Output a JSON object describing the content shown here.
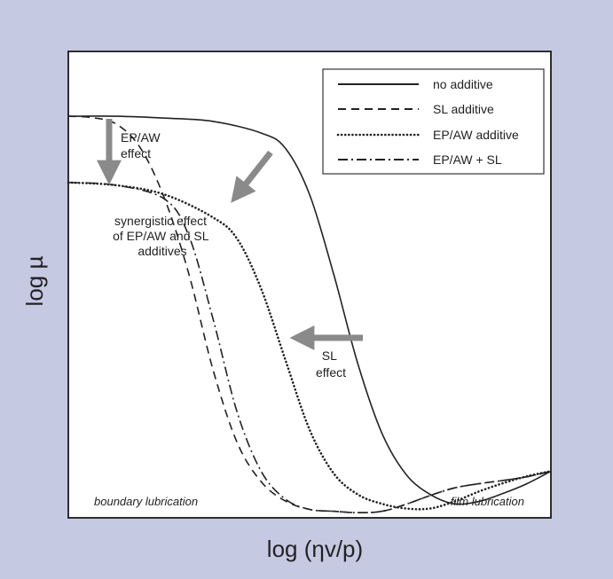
{
  "colors": {
    "background": "#c5c9e2",
    "plot_background": "#ffffff",
    "curve": "#222222",
    "arrow": "#8a8a8a"
  },
  "chart_data": {
    "type": "line",
    "title": "",
    "xlabel": "log (ηv/p)",
    "ylabel": "log µ",
    "xscale": "log",
    "yscale": "log",
    "x_tick_labels": [],
    "y_tick_labels": [],
    "xlim": [
      0,
      100
    ],
    "ylim": [
      0,
      100
    ],
    "grid": false,
    "legend": {
      "position": "top-right"
    },
    "series": [
      {
        "name": "no additive",
        "dash": "solid",
        "x": [
          0,
          10,
          20,
          30,
          40,
          45,
          50,
          55,
          60,
          65,
          70,
          75,
          80,
          85,
          90,
          95,
          100
        ],
        "y": [
          86.1,
          86.1,
          85.7,
          85.0,
          82.5,
          79.2,
          69.3,
          52.2,
          33.0,
          18.1,
          9.3,
          5.0,
          3.0,
          3.5,
          5.2,
          7.3,
          10.0
        ]
      },
      {
        "name": "SL additive",
        "dash": "dashed",
        "x": [
          0,
          5,
          10,
          15,
          20,
          25,
          30,
          35,
          40,
          45,
          50,
          55,
          60,
          65,
          70,
          75,
          80,
          85,
          90,
          95,
          100
        ],
        "y": [
          86.1,
          85.8,
          84.4,
          79.2,
          68.3,
          52.2,
          31.7,
          16.1,
          7.7,
          3.6,
          1.8,
          1.4,
          1.1,
          1.4,
          2.9,
          4.8,
          6.4,
          7.3,
          8.0,
          8.8,
          10.0
        ]
      },
      {
        "name": "EP/AW additive",
        "dash": "dotted",
        "x": [
          0,
          10,
          20,
          30,
          35,
          40,
          45,
          50,
          55,
          60,
          65,
          70,
          75,
          80,
          85,
          90,
          95,
          100
        ],
        "y": [
          71.9,
          71.3,
          69.3,
          64.4,
          59.8,
          49.0,
          33.8,
          18.9,
          9.5,
          5.0,
          3.0,
          2.0,
          2.0,
          3.5,
          5.6,
          7.4,
          8.9,
          10.0
        ]
      },
      {
        "name": "EP/AW + SL",
        "dash": "dashdot",
        "x": [
          0,
          10,
          20,
          25,
          30,
          35,
          40,
          45,
          50,
          55,
          60,
          65,
          70,
          75,
          80,
          85,
          90,
          95,
          100
        ],
        "y": [
          71.9,
          71.3,
          68.3,
          60.4,
          42.6,
          22.6,
          9.9,
          4.0,
          1.8,
          1.4,
          1.1,
          1.4,
          2.9,
          4.8,
          6.4,
          7.3,
          8.0,
          8.8,
          10.0
        ]
      }
    ],
    "annotations": [
      {
        "name": "ep-aw-effect",
        "lines": [
          "EP/AW",
          "effect"
        ]
      },
      {
        "name": "synergistic-effect",
        "lines": [
          "synergistic effect",
          "of EP/AW and SL",
          "additives"
        ]
      },
      {
        "name": "sl-effect",
        "lines": [
          "SL",
          "effect"
        ]
      }
    ],
    "region_labels": {
      "left": "boundary lubrication",
      "right": "film lubrication"
    }
  }
}
